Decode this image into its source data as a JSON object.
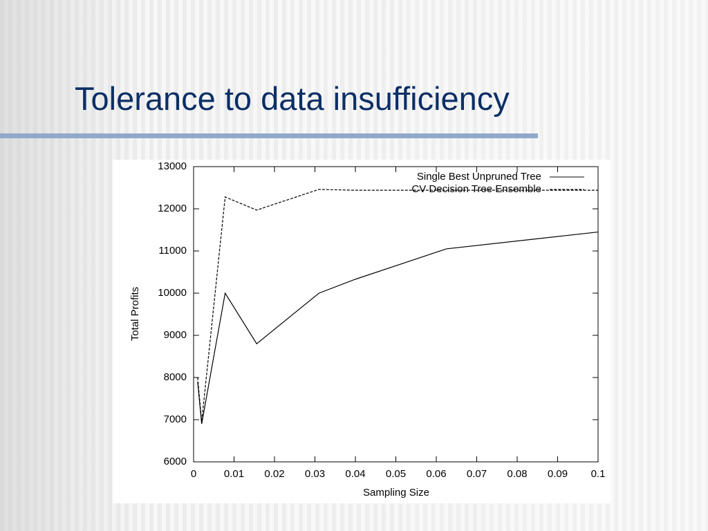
{
  "slide_title": "Tolerance to data insufficiency",
  "chart_data": {
    "type": "line",
    "xlabel": "Sampling Size",
    "ylabel": "Total Profits",
    "x": [
      0.001,
      0.002,
      0.0078,
      0.0156,
      0.031,
      0.04,
      0.0625,
      0.1
    ],
    "series": [
      {
        "name": "Single Best Unpruned Tree",
        "color": "#000000",
        "line_style": "solid",
        "values": [
          7900,
          6900,
          10000,
          8800,
          10000,
          10330,
          11050,
          11450
        ]
      },
      {
        "name": "CV Decision Tree Ensemble",
        "color": "#000000",
        "line_style": "dashed",
        "values": [
          8000,
          6950,
          12280,
          11970,
          12460,
          12440,
          12440,
          12440
        ]
      }
    ],
    "xlim": [
      0,
      0.1
    ],
    "xticks": [
      0,
      0.01,
      0.02,
      0.03,
      0.04,
      0.05,
      0.06,
      0.07,
      0.08,
      0.09,
      0.1
    ],
    "ylim": [
      6000,
      13000
    ],
    "yticks": [
      6000,
      7000,
      8000,
      9000,
      10000,
      11000,
      12000,
      13000
    ],
    "grid": false,
    "legend": "top-right"
  }
}
